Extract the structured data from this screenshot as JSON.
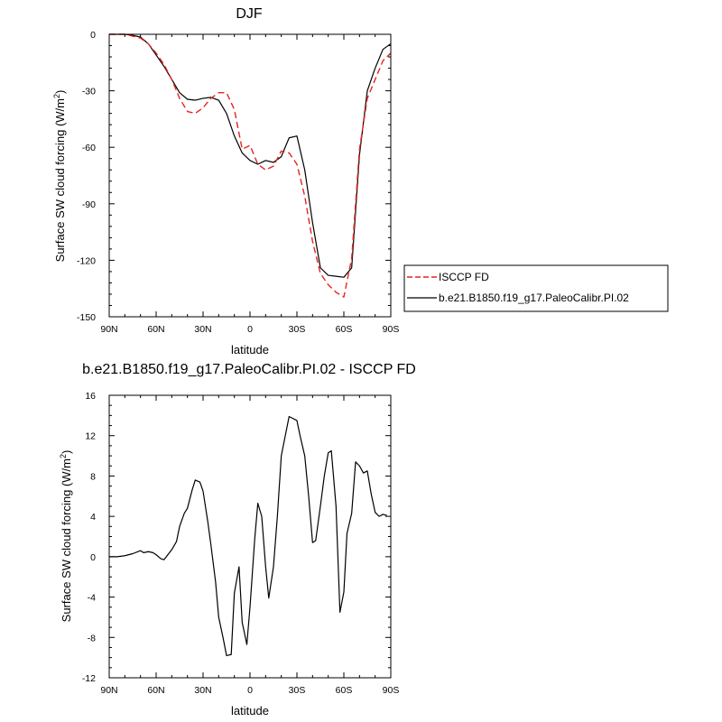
{
  "colors": {
    "model": "#000000",
    "obs": "#e8231f"
  },
  "chart_data": [
    {
      "type": "line",
      "title": "DJF",
      "xlabel": "latitude",
      "ylabel": "Surface SW cloud forcing (W/m²)",
      "xlim": [
        90,
        -90
      ],
      "ylim": [
        -150,
        0
      ],
      "xticks": [
        90,
        60,
        30,
        0,
        -30,
        -60,
        -90
      ],
      "xtick_labels": [
        "90N",
        "60N",
        "30N",
        "0",
        "30S",
        "60S",
        "90S"
      ],
      "yticks": [
        0,
        -30,
        -60,
        -90,
        -120,
        -150
      ],
      "ytick_labels": [
        "0",
        "-30",
        "-60",
        "-90",
        "-120",
        "-150"
      ],
      "legend": {
        "placement": "right",
        "entries": [
          "ISCCP FD",
          "b.e21.B1850.f19_g17.PaleoCalibr.PI.02"
        ]
      },
      "series": [
        {
          "name": "b.e21.B1850.f19_g17.PaleoCalibr.PI.02",
          "color": "#000000",
          "style": "solid",
          "x": [
            90,
            85,
            80,
            75,
            70,
            65,
            60,
            55,
            50,
            45,
            40,
            35,
            30,
            25,
            20,
            15,
            10,
            5,
            0,
            -5,
            -10,
            -15,
            -20,
            -25,
            -30,
            -35,
            -40,
            -45,
            -50,
            -55,
            -60,
            -65,
            -70,
            -75,
            -80,
            -85,
            -90
          ],
          "y": [
            0,
            0,
            0,
            -0.5,
            -1.5,
            -5,
            -11,
            -17,
            -24,
            -31,
            -34.5,
            -35,
            -34,
            -33.5,
            -35,
            -42,
            -54,
            -63,
            -67,
            -69,
            -67,
            -68,
            -65,
            -55,
            -54,
            -72,
            -100,
            -124,
            -128,
            -128.5,
            -129,
            -124,
            -64,
            -30,
            -18,
            -8,
            -5
          ]
        },
        {
          "name": "ISCCP FD",
          "color": "#e8231f",
          "style": "dashed",
          "x": [
            90,
            85,
            80,
            75,
            70,
            65,
            60,
            55,
            50,
            45,
            40,
            35,
            30,
            25,
            20,
            15,
            10,
            5,
            0,
            -5,
            -10,
            -15,
            -20,
            -25,
            -30,
            -35,
            -40,
            -45,
            -50,
            -55,
            -60,
            -65,
            -70,
            -75,
            -80,
            -85,
            -90
          ],
          "y": [
            0,
            0,
            0,
            -1,
            -2,
            -5,
            -10,
            -16,
            -24,
            -34,
            -41,
            -42,
            -39,
            -34,
            -31,
            -31,
            -40,
            -61,
            -59,
            -69,
            -72,
            -70,
            -62,
            -63,
            -69,
            -86,
            -110,
            -127,
            -133,
            -137,
            -139.5,
            -119,
            -61,
            -34,
            -24,
            -14,
            -10
          ]
        }
      ]
    },
    {
      "type": "line",
      "title": "b.e21.B1850.f19_g17.PaleoCalibr.PI.02 - ISCCP FD",
      "xlabel": "latitude",
      "ylabel": "Surface SW cloud forcing (W/m²)",
      "xlim": [
        90,
        -90
      ],
      "ylim": [
        -12,
        16
      ],
      "xticks": [
        90,
        60,
        30,
        0,
        -30,
        -60,
        -90
      ],
      "xtick_labels": [
        "90N",
        "60N",
        "30N",
        "0",
        "30S",
        "60S",
        "90S"
      ],
      "yticks": [
        16,
        12,
        8,
        4,
        0,
        -4,
        -8,
        -12
      ],
      "ytick_labels": [
        "16",
        "12",
        "8",
        "4",
        "0",
        "-4",
        "-8",
        "-12"
      ],
      "series": [
        {
          "color": "#000000",
          "style": "solid",
          "x": [
            90,
            85,
            80,
            75,
            70,
            68,
            65,
            62,
            60,
            57,
            55,
            52,
            50,
            47,
            45,
            42,
            40,
            37,
            35,
            32,
            30,
            27,
            25,
            22,
            20,
            17,
            15,
            12,
            10,
            7,
            5,
            2,
            0,
            -3,
            -5,
            -7.5,
            -10,
            -12,
            -15,
            -17.5,
            -20,
            -25,
            -30,
            -32,
            -35,
            -37.5,
            -40,
            -42,
            -45,
            -47.5,
            -50,
            -52,
            -55,
            -57.5,
            -60,
            -62,
            -65,
            -67.5,
            -70,
            -72.5,
            -75,
            -77.5,
            -80,
            -82.5,
            -85,
            -87.5
          ],
          "y": [
            0,
            0,
            0.1,
            0.3,
            0.6,
            0.4,
            0.5,
            0.4,
            0.2,
            -0.2,
            -0.3,
            0.3,
            0.7,
            1.5,
            3,
            4.3,
            4.8,
            6.6,
            7.6,
            7.4,
            6.5,
            3.5,
            1.2,
            -2.5,
            -6,
            -8.2,
            -9.8,
            -9.7,
            -3.6,
            -1,
            -6.5,
            -8.7,
            -5,
            1.7,
            5.3,
            4,
            -1,
            -4.1,
            -1,
            4,
            10,
            13.9,
            13.5,
            12,
            10,
            6,
            1.4,
            1.6,
            5,
            8,
            10.3,
            10.5,
            5,
            -5.5,
            -3.5,
            2.3,
            4.3,
            9.4,
            9,
            8.3,
            8.5,
            6.2,
            4.4,
            4,
            4.2,
            4.1
          ]
        }
      ]
    }
  ]
}
